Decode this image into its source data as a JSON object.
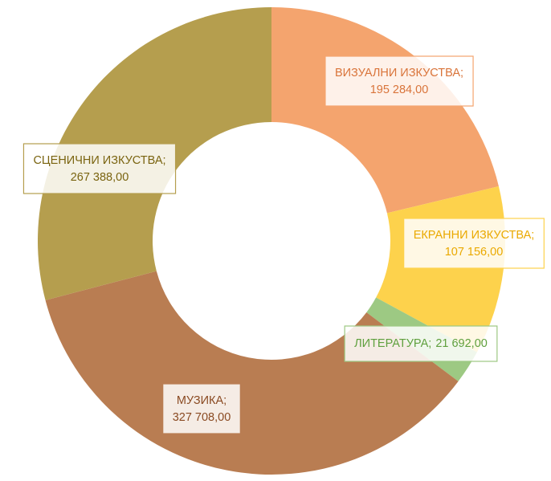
{
  "chart_data": {
    "type": "donut",
    "categories": [
      "ВИЗУАЛНИ ИЗКУСТВА",
      "ЕКРАННИ ИЗКУСТВА",
      "ЛИТЕРАТУРА",
      "МУЗИКА",
      "СЦЕНИЧНИ ИЗКУСТВА"
    ],
    "values": [
      195284,
      107156,
      21692,
      327708,
      267388
    ],
    "value_labels": [
      "195 284,00",
      "107 156,00",
      "21 692,00",
      "327 708,00",
      "267 388,00"
    ],
    "label_separator": ";",
    "colors": [
      "#f4a46e",
      "#fdd24c",
      "#9dc983",
      "#b97d52",
      "#b59e4e"
    ]
  }
}
